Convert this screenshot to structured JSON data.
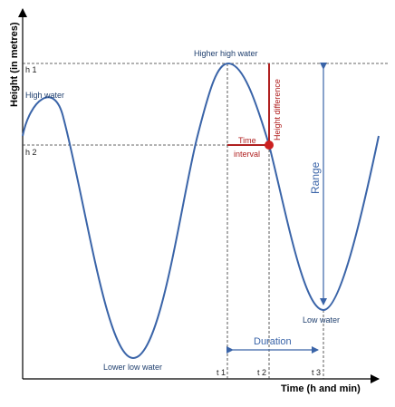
{
  "axes": {
    "y_label": "Height (in metres)",
    "x_label": "Time (h and min)",
    "y_ticks": [
      "h 1",
      "h 2"
    ],
    "x_ticks": [
      "t 1",
      "t 2",
      "t 3"
    ]
  },
  "annotations": {
    "high_water": "High water",
    "higher_high_water": "Higher high water",
    "lower_low_water": "Lower low water",
    "low_water": "Low water",
    "time_interval_line1": "Time",
    "time_interval_line2": "interval",
    "height_difference": "Height difference",
    "range": "Range",
    "duration": "Duration"
  },
  "colors": {
    "curve": "#3a64a8",
    "accent_red": "#b02020",
    "dashed": "#333333",
    "axis": "#000000",
    "label": "#1f3f6e"
  }
}
